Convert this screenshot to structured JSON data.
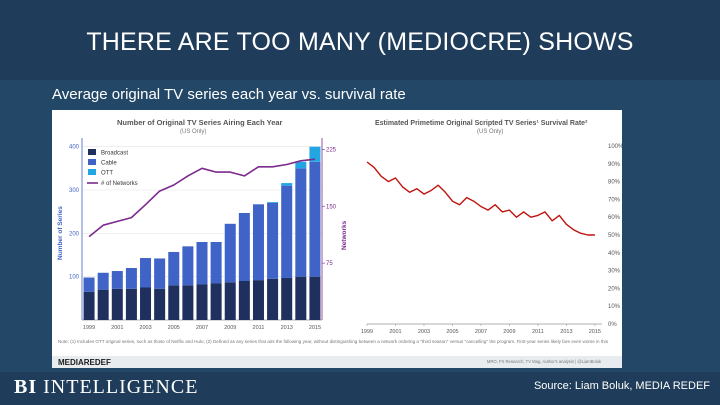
{
  "title": "THERE ARE TOO MANY (MEDIOCRE) SHOWS",
  "subtitle": "Average original TV series each year vs. survival rate",
  "brand": {
    "bi": "BI",
    "intelligence": "INTELLIGENCE"
  },
  "source": "Source: Liam Boluk, MEDIA REDEF",
  "chart_data": [
    {
      "type": "bar",
      "title": "Number of Original TV Series Airing Each Year",
      "subtitle": "(US Only)",
      "ylabel": "Number of Series",
      "y2label": "Networks",
      "ylim": [
        0,
        420
      ],
      "y2lim": [
        0,
        240
      ],
      "yticks": [
        "100",
        "200",
        "300",
        "400"
      ],
      "ytick_values": [
        100,
        200,
        300,
        400
      ],
      "y2ticks": [
        "75",
        "150",
        "225"
      ],
      "y2tick_values": [
        75,
        150,
        225
      ],
      "xtick_labels": [
        "1999",
        "2001",
        "2003",
        "2005",
        "2007",
        "2009",
        "2011",
        "2013",
        "2015"
      ],
      "categories": [
        "1999",
        "2000",
        "2001",
        "2002",
        "2003",
        "2004",
        "2005",
        "2006",
        "2007",
        "2008",
        "2009",
        "2010",
        "2011",
        "2012",
        "2013",
        "2014",
        "2015"
      ],
      "series": [
        {
          "name": "Broadcast",
          "color": "#1f2f5e",
          "values": [
            65,
            70,
            72,
            72,
            75,
            72,
            80,
            80,
            82,
            85,
            87,
            90,
            92,
            95,
            97,
            100,
            100
          ]
        },
        {
          "name": "Cable",
          "color": "#3f63c6",
          "values": [
            33,
            39,
            41,
            48,
            68,
            70,
            77,
            90,
            98,
            95,
            135,
            157,
            175,
            175,
            213,
            250,
            265
          ]
        },
        {
          "name": "OTT",
          "color": "#22a6e3",
          "values": [
            0,
            0,
            0,
            0,
            0,
            0,
            0,
            0,
            0,
            0,
            0,
            0,
            0,
            2,
            6,
            15,
            35
          ]
        }
      ],
      "line": {
        "name": "# of Networks",
        "color": "#7b2a8d",
        "axis": "right",
        "values": [
          110,
          125,
          130,
          135,
          152,
          170,
          178,
          190,
          200,
          195,
          195,
          190,
          202,
          202,
          205,
          210,
          212
        ]
      },
      "note": "Note: (1) Includes OTT original series, such as those of Netflix and Hulu; (2) Defined as any series that airs the following year, without distinguishing between a network ordering a \"third season\" versus \"cancelling\" the program. First-year series likely fare even worse in this",
      "credit": "MEDIAREDEF"
    },
    {
      "type": "line",
      "title": "Estimated Primetime Original Scripted TV Series¹ Survival Rate²",
      "subtitle": "(US Only)",
      "ylim": [
        0,
        100
      ],
      "yticks": [
        "100%",
        "90%",
        "80%",
        "70%",
        "60%",
        "50%",
        "40%",
        "30%",
        "20%",
        "10%",
        "0%"
      ],
      "ytick_values": [
        100,
        90,
        80,
        70,
        60,
        50,
        40,
        30,
        20,
        10,
        0
      ],
      "xtick_labels": [
        "1999",
        "2001",
        "2003",
        "2005",
        "2007",
        "2009",
        "2011",
        "2013",
        "2015"
      ],
      "x": [
        1999,
        1999.5,
        2000,
        2000.5,
        2001,
        2001.5,
        2002,
        2002.5,
        2003,
        2003.5,
        2004,
        2004.5,
        2005,
        2005.5,
        2006,
        2006.5,
        2007,
        2007.5,
        2008,
        2008.5,
        2009,
        2009.5,
        2010,
        2010.5,
        2011,
        2011.5,
        2012,
        2012.5,
        2013,
        2013.5,
        2014,
        2014.5,
        2015
      ],
      "values": [
        91,
        88,
        83,
        80,
        82,
        77,
        74,
        76,
        73,
        75,
        78,
        74,
        69,
        67,
        71,
        69,
        66,
        64,
        67,
        63,
        64,
        60,
        63,
        60,
        61,
        63,
        58,
        61,
        56,
        53,
        51,
        50,
        50
      ],
      "color": "#c0120e",
      "credit": "MRO, FX Research, TV Mag, Author's analysis | @LiamBoluk"
    }
  ]
}
